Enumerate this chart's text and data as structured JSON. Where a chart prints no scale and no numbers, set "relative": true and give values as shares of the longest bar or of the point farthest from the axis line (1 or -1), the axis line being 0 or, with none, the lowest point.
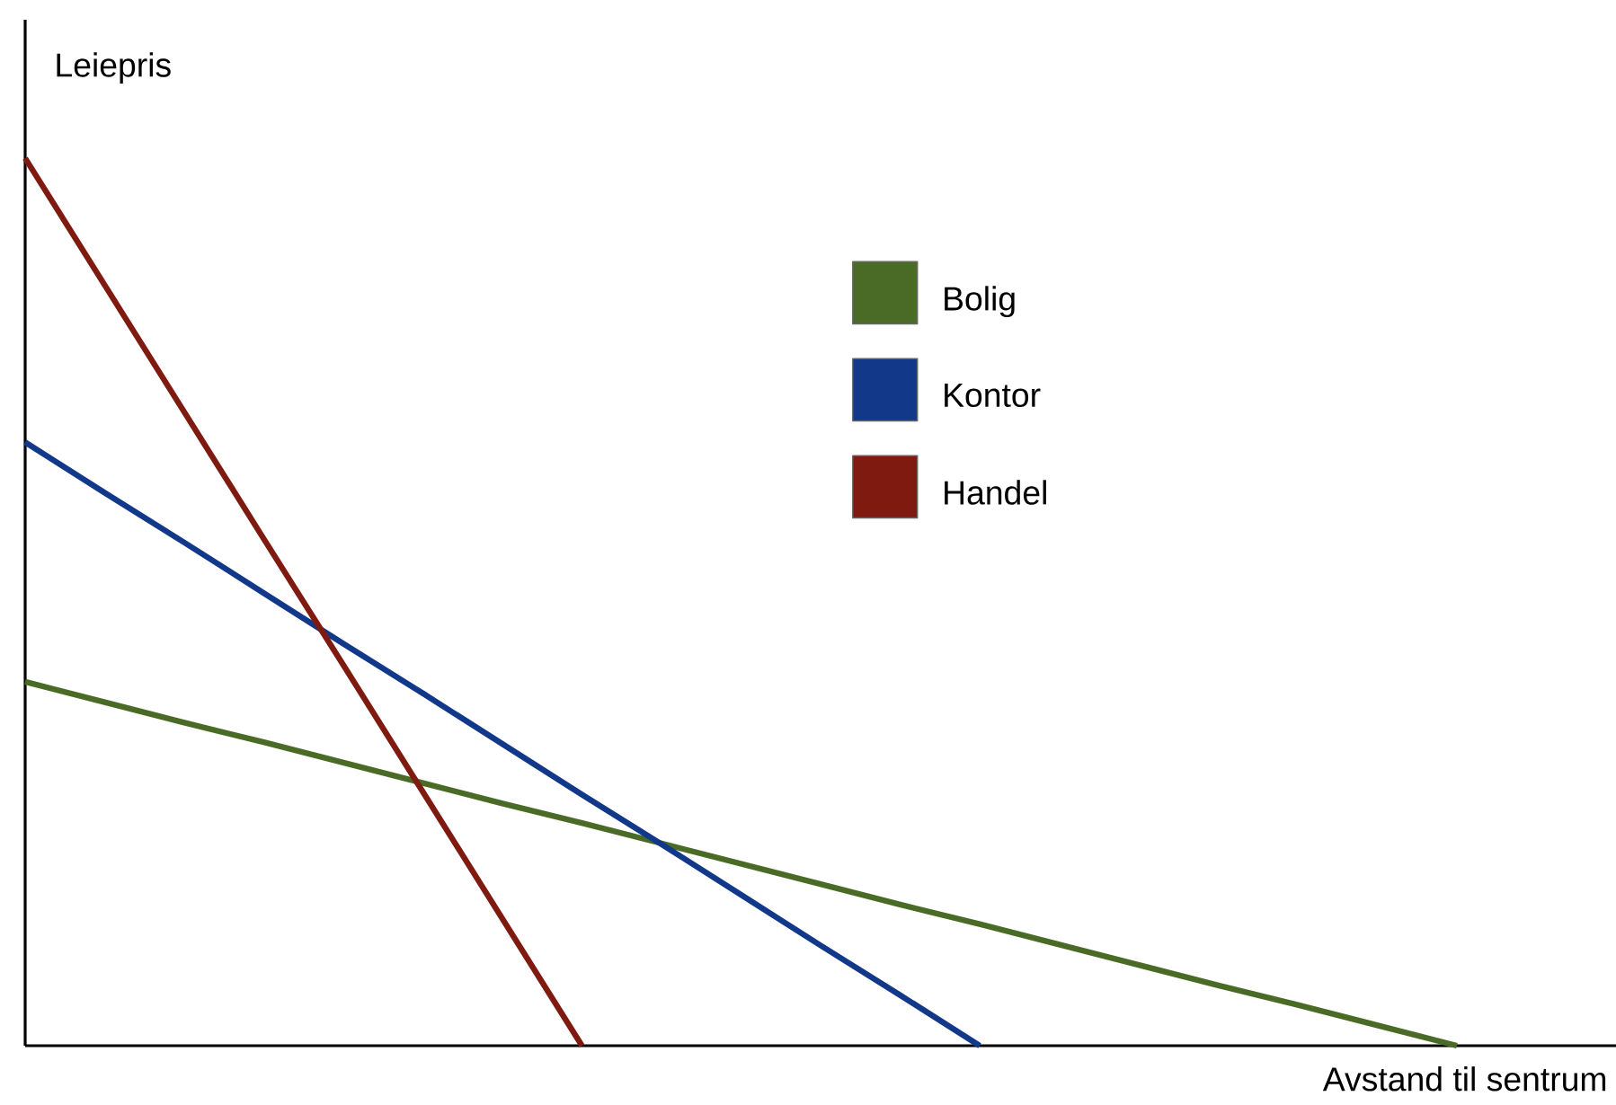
{
  "chart_data": {
    "type": "line",
    "relative": true,
    "xlabel": "Avstand til sentrum",
    "ylabel": "Leiepris",
    "legend": "top",
    "marker": "none",
    "line_style": "solid",
    "categories": [
      null,
      null,
      null,
      null,
      null,
      null,
      null,
      null,
      null,
      null,
      null,
      null,
      null,
      null,
      null,
      null,
      null,
      null,
      null,
      null,
      null
    ],
    "series": [
      {
        "name": "Bolig",
        "color": "#4a6b25",
        "values": [
          0.41,
          0.387,
          0.364,
          0.342,
          0.319,
          0.296,
          0.273,
          0.251,
          0.228,
          0.205,
          0.182,
          0.159,
          0.137,
          0.114,
          0.091,
          0.068,
          0.046,
          0.023,
          0,
          null,
          null
        ]
      },
      {
        "name": "Kontor",
        "color": "#12388a",
        "values": [
          0.68,
          0.623,
          0.567,
          0.51,
          0.453,
          0.397,
          0.34,
          0.283,
          0.227,
          0.17,
          0.113,
          0.057,
          0,
          null,
          null,
          null,
          null,
          null,
          null,
          null,
          null
        ]
      },
      {
        "name": "Handel",
        "color": "#7f1a10",
        "values": [
          1,
          0.857,
          0.714,
          0.571,
          0.429,
          0.286,
          0.143,
          0,
          null,
          null,
          null,
          null,
          null,
          null,
          null,
          null,
          null,
          null,
          null,
          null,
          null
        ]
      }
    ]
  }
}
